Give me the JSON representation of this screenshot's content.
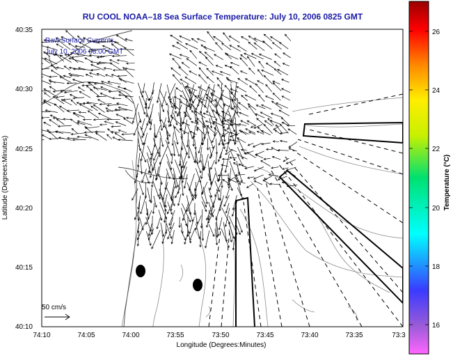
{
  "title": "RU COOL  NOAA–18  Sea Surface Temperature:  July 10, 2006 0825 GMT",
  "overlay": {
    "line1": "Raw Surface Currents",
    "line2": "July 10, 2006 08:00 GMT"
  },
  "axes": {
    "xlabel": "Longitude (Degrees:Minutes)",
    "ylabel": "Latitude (Degrees:Minutes)",
    "x_ticks": [
      "74:10",
      "74:05",
      "74:00",
      "73:55",
      "73:50",
      "73:45",
      "73:40",
      "73:35",
      "73:3"
    ],
    "y_ticks": [
      "40:35",
      "40:30",
      "40:25",
      "40:20",
      "40:15",
      "40:10"
    ]
  },
  "scale": {
    "label": "50 cm/s"
  },
  "colorbar": {
    "label": "Temperature (°C)",
    "ticks": [
      "26",
      "24",
      "22",
      "20",
      "18",
      "16"
    ]
  },
  "colors": {
    "title": "#1a1aa6",
    "land": "#ffffff",
    "contour": "#8a8a8a",
    "arrow": "#000000"
  }
}
